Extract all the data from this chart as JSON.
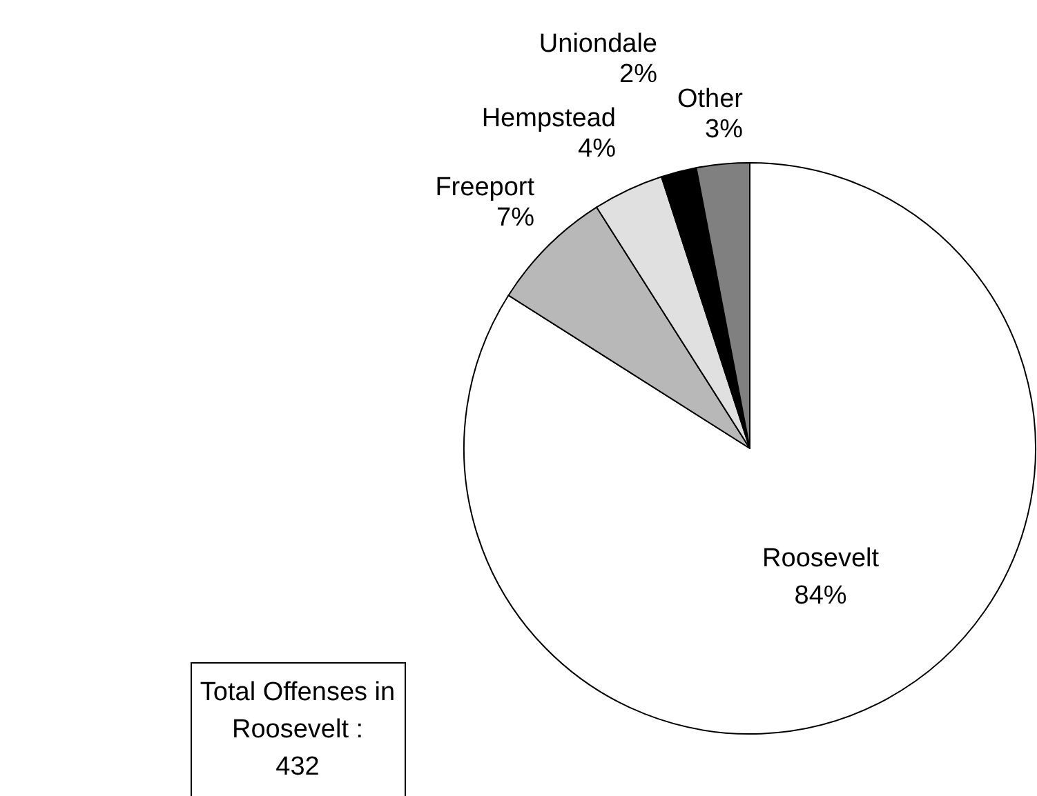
{
  "chart_data": {
    "type": "pie",
    "categories": [
      "Roosevelt",
      "Freeport",
      "Hempstead",
      "Uniondale",
      "Other"
    ],
    "values": [
      84,
      7,
      4,
      2,
      3
    ],
    "value_labels": [
      "84%",
      "7%",
      "4%",
      "2%",
      "3%"
    ],
    "colors": [
      "#ffffff",
      "#b8b8b8",
      "#e0e0e0",
      "#000000",
      "#808080"
    ],
    "annotations": [
      "Total Offenses in\nRoosevelt :\n432"
    ],
    "legend": false
  }
}
